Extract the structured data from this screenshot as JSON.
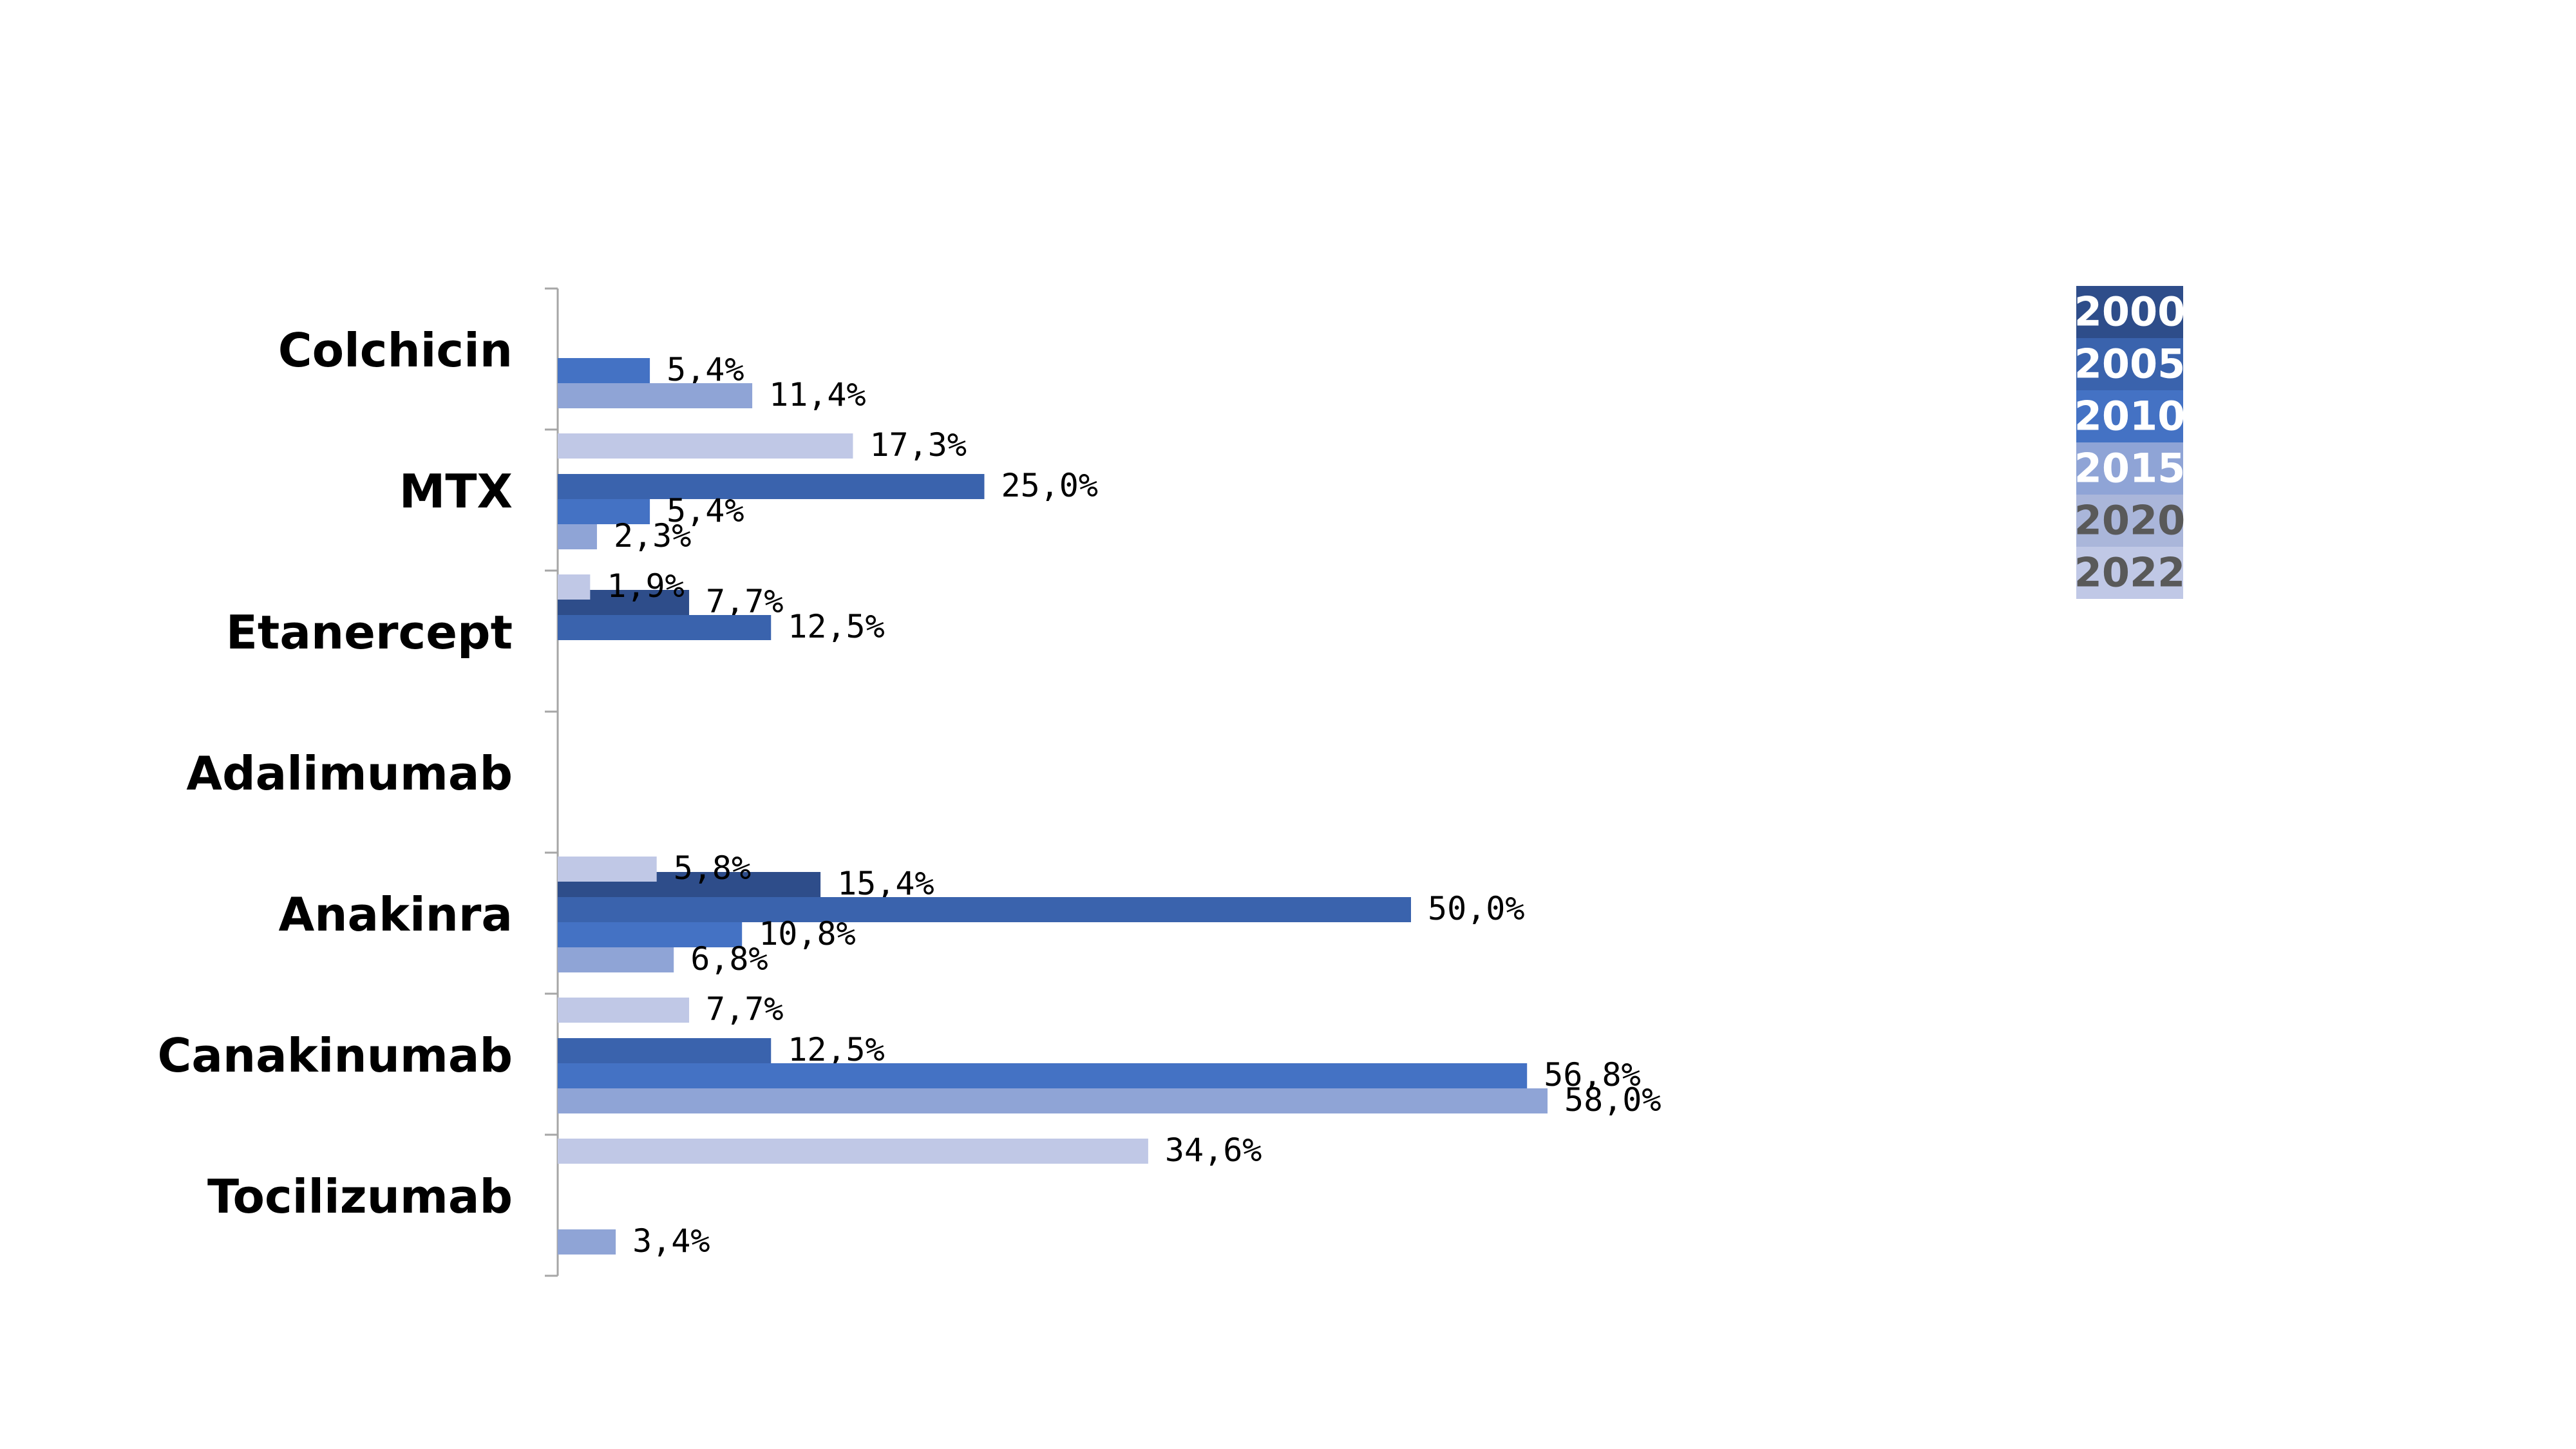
{
  "chart_data": {
    "type": "bar",
    "orientation": "horizontal",
    "categories": [
      "Colchicin",
      "MTX",
      "Etanercept",
      "Adalimumab",
      "Anakinra",
      "Canakinumab",
      "Tocilizumab"
    ],
    "series": [
      {
        "name": "2000",
        "color": "#2e4d8a",
        "values": [
          null,
          null,
          7.7,
          null,
          15.4,
          null,
          null
        ],
        "labels": [
          null,
          null,
          "7,7%",
          null,
          "15,4%",
          null,
          null
        ]
      },
      {
        "name": "2005",
        "color": "#3a63ad",
        "values": [
          null,
          25.0,
          12.5,
          null,
          50.0,
          12.5,
          null
        ],
        "labels": [
          null,
          "25,0%",
          "12,5%",
          null,
          "50,0%",
          "12,5%",
          null
        ]
      },
      {
        "name": "2010",
        "color": "#4472c4",
        "values": [
          5.4,
          5.4,
          null,
          null,
          10.8,
          56.8,
          null
        ],
        "labels": [
          "5,4%",
          "5,4%",
          null,
          null,
          "10,8%",
          "56,8%",
          null
        ]
      },
      {
        "name": "2015",
        "color": "#8fa4d6",
        "values": [
          11.4,
          2.3,
          null,
          null,
          6.8,
          58.0,
          3.4
        ],
        "labels": [
          "11,4%",
          "2,3%",
          null,
          null,
          "6,8%",
          "58,0%",
          "3,4%"
        ]
      },
      {
        "name": "2020",
        "color": "#aab6da",
        "values": [
          null,
          null,
          null,
          null,
          null,
          null,
          null
        ],
        "labels": [
          null,
          null,
          null,
          null,
          null,
          null,
          null
        ]
      },
      {
        "name": "2022",
        "color": "#c0c8e6",
        "values": [
          17.3,
          1.9,
          null,
          5.8,
          7.7,
          34.6,
          null
        ],
        "labels": [
          "17,3%",
          "1,9%",
          null,
          "5,8%",
          "7,7%",
          "34,6%",
          null
        ]
      }
    ],
    "xlim": [
      0,
      100
    ],
    "grid": false,
    "legend_position": "top-right",
    "legend": [
      {
        "label": "2000",
        "bg": "#2e4d8a",
        "fg": "#ffffff"
      },
      {
        "label": "2005",
        "bg": "#3a63ad",
        "fg": "#ffffff"
      },
      {
        "label": "2010",
        "bg": "#4472c4",
        "fg": "#ffffff"
      },
      {
        "label": "2015",
        "bg": "#8fa4d6",
        "fg": "#ffffff"
      },
      {
        "label": "2020",
        "bg": "#aab6da",
        "fg": "#595959"
      },
      {
        "label": "2022",
        "bg": "#c0c8e6",
        "fg": "#595959"
      }
    ]
  }
}
